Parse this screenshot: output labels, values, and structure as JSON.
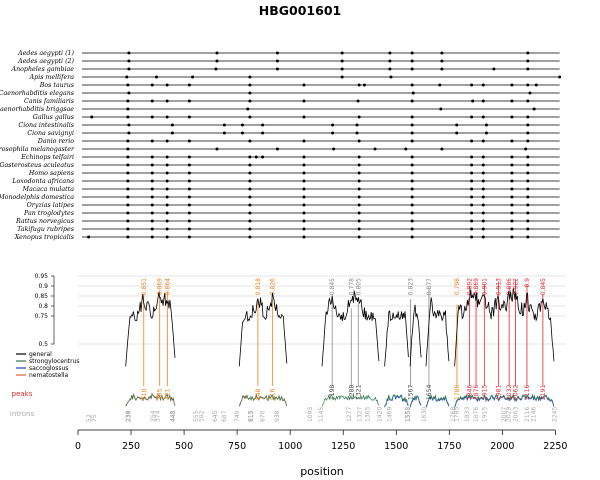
{
  "chart_data": {
    "type": "line",
    "title": "HBG001601",
    "xlabel": "position",
    "xlim": [
      0,
      2300
    ],
    "x_ticks": [
      0,
      250,
      500,
      750,
      1000,
      1250,
      1500,
      1750,
      2000,
      2250
    ],
    "y_ticks": [
      "0.95",
      "0.9",
      "0.85",
      "0.8",
      "0.75",
      "0.5"
    ],
    "ylim": [
      0.2,
      1.0
    ],
    "species": [
      {
        "name": "Aedes aegypti (1)",
        "positions": [
          240,
          655,
          940,
          1245,
          1470,
          1575,
          1715,
          2120
        ]
      },
      {
        "name": "Aedes aegypti (2)",
        "positions": [
          240,
          655,
          940,
          1245,
          1470,
          1575,
          1715,
          2120
        ]
      },
      {
        "name": "Anopheles gambiae",
        "positions": [
          240,
          650,
          940,
          1245,
          1470,
          1575,
          1715,
          1960,
          2120
        ]
      },
      {
        "name": "Apis mellifera",
        "positions": [
          230,
          370,
          540,
          810,
          1245,
          1475,
          2270
        ]
      },
      {
        "name": "Bos taurus",
        "positions": [
          235,
          350,
          420,
          525,
          810,
          1065,
          1325,
          1350,
          1575,
          1705,
          1855,
          1910,
          2045,
          2120,
          2160
        ]
      },
      {
        "name": "Caenorhabditis elegans",
        "positions": [
          240,
          810,
          1580,
          2130
        ]
      },
      {
        "name": "Canis familiaris",
        "positions": [
          235,
          350,
          420,
          525,
          810,
          1065,
          1320,
          1575,
          1860,
          1910,
          2045,
          2120
        ]
      },
      {
        "name": "Caenorhabditis briggsae",
        "positions": [
          235,
          800,
          1710,
          2150
        ]
      },
      {
        "name": "Gallus gallus",
        "positions": [
          65,
          235,
          350,
          420,
          525,
          810,
          1065,
          1325,
          1575,
          1855,
          1910,
          2045,
          2120
        ]
      },
      {
        "name": "Ciona intestinalis",
        "positions": [
          240,
          445,
          690,
          775,
          870,
          1200,
          1315,
          1575,
          1785,
          1925,
          2120
        ]
      },
      {
        "name": "Ciona savignyi",
        "positions": [
          240,
          445,
          690,
          775,
          870,
          1200,
          1315,
          1575,
          1785,
          1925,
          2120
        ]
      },
      {
        "name": "Danio rerio",
        "positions": [
          235,
          350,
          420,
          525,
          810,
          1065,
          1325,
          1575,
          1855,
          1910,
          2045,
          2120
        ]
      },
      {
        "name": "Drosophila melanogaster",
        "positions": [
          235,
          655,
          940,
          1205,
          1400,
          1545,
          1715,
          2110
        ]
      },
      {
        "name": "Echinops telfairi",
        "positions": [
          235,
          350,
          420,
          525,
          810,
          840,
          870,
          1065,
          1325,
          1575,
          1855,
          1910,
          2045,
          2120
        ]
      },
      {
        "name": "Gasterosteus aculeatus",
        "positions": [
          235,
          350,
          420,
          525,
          810,
          1065,
          1325,
          1575,
          1855,
          1910,
          2045,
          2120
        ]
      },
      {
        "name": "Homo sapiens",
        "positions": [
          235,
          350,
          420,
          525,
          810,
          1065,
          1325,
          1575,
          1855,
          1910,
          2045,
          2120
        ]
      },
      {
        "name": "Loxodonta africana",
        "positions": [
          235,
          350,
          420,
          525,
          810,
          1065,
          1325,
          1575,
          1855,
          1910,
          2045,
          2120
        ]
      },
      {
        "name": "Macaca mulatta",
        "positions": [
          235,
          350,
          420,
          525,
          810,
          1065,
          1325,
          1575,
          1855,
          1910,
          2045,
          2120
        ]
      },
      {
        "name": "Monodelphis domestica",
        "positions": [
          235,
          350,
          420,
          525,
          810,
          1065,
          1325,
          1575,
          1855,
          1910,
          2045,
          2120
        ]
      },
      {
        "name": "Oryzias latipes",
        "positions": [
          235,
          350,
          420,
          525,
          810,
          1065,
          1325,
          1575,
          1855,
          1910,
          2045,
          2120
        ]
      },
      {
        "name": "Pan troglodytes",
        "positions": [
          235,
          350,
          420,
          525,
          810,
          1065,
          1325,
          1575,
          1855,
          1910,
          2045,
          2120
        ]
      },
      {
        "name": "Rattus norvegicus",
        "positions": [
          235,
          350,
          420,
          525,
          810,
          1065,
          1325,
          1575,
          1855,
          1910,
          2045,
          2120
        ]
      },
      {
        "name": "Takifugu rubripes",
        "positions": [
          235,
          350,
          420,
          525,
          810,
          1065,
          1325,
          1575,
          1855,
          1910,
          2045,
          2120
        ]
      },
      {
        "name": "Xenopus tropicalis",
        "positions": [
          50,
          235,
          350,
          420,
          525,
          810,
          1065,
          1325,
          1575,
          1855,
          1910,
          2045,
          2120
        ]
      }
    ],
    "legend": {
      "placement": "left",
      "entries": [
        {
          "name": "general",
          "color": "#000000"
        },
        {
          "name": "strongylocentrus",
          "color": "#2e7d4f"
        },
        {
          "name": "saccoglossus",
          "color": "#1f3fbf"
        },
        {
          "name": "nematostella",
          "color": "#e0603a"
        }
      ]
    },
    "peaks": [
      {
        "x": 310,
        "score": "0.851",
        "color": "#ef7f1a"
      },
      {
        "x": 385,
        "score": "0.869",
        "color": "#ef7f1a"
      },
      {
        "x": 421,
        "score": "0.864",
        "color": "#ef7f1a"
      },
      {
        "x": 848,
        "score": "0.818",
        "color": "#ef7f1a"
      },
      {
        "x": 916,
        "score": "0.826",
        "color": "#ef7f1a"
      },
      {
        "x": 1198,
        "score": "0.845",
        "color": "#888888"
      },
      {
        "x": 1288,
        "score": "0.778",
        "color": "#888888"
      },
      {
        "x": 1321,
        "score": "0.805",
        "color": "#888888"
      },
      {
        "x": 1567,
        "score": "0.823",
        "color": "#888888"
      },
      {
        "x": 1654,
        "score": "0.877",
        "color": "#888888"
      },
      {
        "x": 1786,
        "score": "0.798",
        "color": "#ef7f1a"
      },
      {
        "x": 1846,
        "score": "0.892",
        "color": "#e3242b"
      },
      {
        "x": 1876,
        "score": "0.869",
        "color": "#e3242b"
      },
      {
        "x": 1915,
        "score": "0.901",
        "color": "#e3242b"
      },
      {
        "x": 1981,
        "score": "0.913",
        "color": "#e3242b"
      },
      {
        "x": 2032,
        "score": "0.886",
        "color": "#e3242b"
      },
      {
        "x": 2062,
        "score": "0.922",
        "color": "#e3242b"
      },
      {
        "x": 2116,
        "score": "0.9",
        "color": "#e3242b"
      },
      {
        "x": 2191,
        "score": "0.845",
        "color": "#e3242b"
      }
    ],
    "peak_tick_labels": [
      {
        "x": 310,
        "label": "310",
        "color": "#ef7f1a"
      },
      {
        "x": 385,
        "label": "385",
        "color": "#ef7f1a"
      },
      {
        "x": 421,
        "label": "421",
        "color": "#ef7f1a"
      },
      {
        "x": 848,
        "label": "848",
        "color": "#ef7f1a"
      },
      {
        "x": 916,
        "label": "916",
        "color": "#ef7f1a"
      },
      {
        "x": 1198,
        "label": "1198",
        "color": "#444444"
      },
      {
        "x": 1288,
        "label": "1288",
        "color": "#444444"
      },
      {
        "x": 1321,
        "label": "1321",
        "color": "#444444"
      },
      {
        "x": 1567,
        "label": "1567",
        "color": "#444444"
      },
      {
        "x": 1654,
        "label": "1654",
        "color": "#444444"
      },
      {
        "x": 1786,
        "label": "1786",
        "color": "#ef7f1a"
      },
      {
        "x": 1846,
        "label": "1846",
        "color": "#e3242b"
      },
      {
        "x": 1876,
        "label": "1876",
        "color": "#e3242b"
      },
      {
        "x": 1915,
        "label": "1915",
        "color": "#e3242b"
      },
      {
        "x": 1981,
        "label": "1981",
        "color": "#e3242b"
      },
      {
        "x": 2032,
        "label": "2032",
        "color": "#e3242b"
      },
      {
        "x": 2062,
        "label": "2062",
        "color": "#e3242b"
      },
      {
        "x": 2116,
        "label": "2116",
        "color": "#e3242b"
      },
      {
        "x": 2191,
        "label": "2191",
        "color": "#e3242b"
      }
    ],
    "introns": [
      "52",
      "75",
      "236",
      "237",
      "239",
      "354",
      "374",
      "445",
      "448",
      "555",
      "582",
      "645",
      "687",
      "749",
      "813",
      "815",
      "870",
      "938",
      "1093",
      "1145",
      "1277",
      "1327",
      "1365",
      "1420",
      "1469",
      "1552",
      "1555",
      "1630",
      "1768",
      "1785",
      "1833",
      "1876",
      "1915",
      "2007",
      "2029",
      "2063",
      "2116",
      "2146",
      "2245"
    ],
    "row_labels": {
      "peaks": "peaks",
      "introns": "introns"
    },
    "curve_segments": [
      {
        "from": 225,
        "to": 460
      },
      {
        "from": 760,
        "to": 985
      },
      {
        "from": 1150,
        "to": 1420
      },
      {
        "from": 1445,
        "to": 1560
      },
      {
        "from": 1565,
        "to": 1620
      },
      {
        "from": 1640,
        "to": 1750
      },
      {
        "from": 1775,
        "to": 2245
      }
    ]
  }
}
